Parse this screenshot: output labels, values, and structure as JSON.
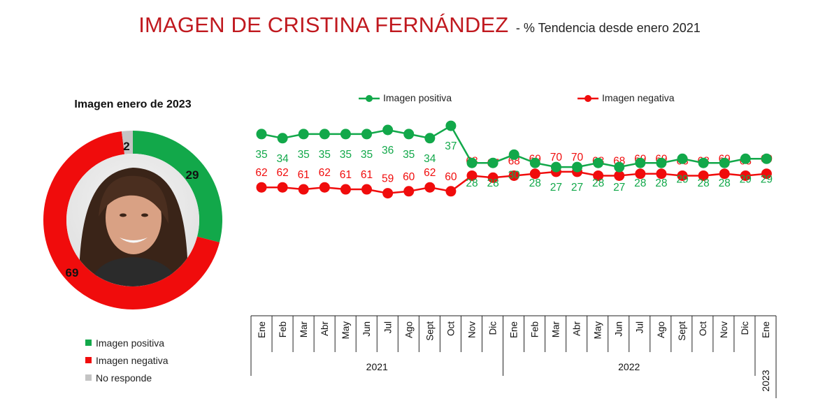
{
  "title": {
    "main": "IMAGEN DE CRISTINA FERNÁNDEZ",
    "sub": "- % Tendencia desde enero 2021"
  },
  "donut": {
    "title": "Imagen enero de 2023",
    "segments": [
      {
        "label": "Imagen positiva",
        "value": 29,
        "color": "#12a84a"
      },
      {
        "label": "Imagen negativa",
        "value": 69,
        "color": "#f00c0c"
      },
      {
        "label": "No responde",
        "value": 2,
        "color": "#c4c4c4"
      }
    ]
  },
  "chart_data": [
    {
      "type": "pie",
      "title": "Imagen enero de 2023",
      "categories": [
        "Imagen positiva",
        "Imagen negativa",
        "No responde"
      ],
      "values": [
        29,
        69,
        2
      ],
      "colors": [
        "#12a84a",
        "#f00c0c",
        "#c4c4c4"
      ],
      "legend": "bottom-left"
    },
    {
      "type": "line",
      "title": "IMAGEN DE CRISTINA FERNÁNDEZ - % Tendencia desde enero 2021",
      "x": [
        "Ene",
        "Feb",
        "Mar",
        "Abr",
        "May",
        "Jun",
        "Jul",
        "Ago",
        "Sept",
        "Oct",
        "Nov",
        "Dic",
        "Ene",
        "Feb",
        "Mar",
        "Abr",
        "May",
        "Jun",
        "Jul",
        "Ago",
        "Sept",
        "Oct",
        "Nov",
        "Dic",
        "Ene"
      ],
      "year_groups": [
        {
          "label": "2021",
          "count": 12
        },
        {
          "label": "2022",
          "count": 12
        },
        {
          "label": "2023",
          "count": 1
        }
      ],
      "series": [
        {
          "name": "Imagen positiva",
          "color": "#12a84a",
          "values": [
            35,
            34,
            35,
            35,
            35,
            35,
            36,
            35,
            34,
            37,
            28,
            28,
            30,
            28,
            27,
            27,
            28,
            27,
            28,
            28,
            29,
            28,
            28,
            29,
            29
          ]
        },
        {
          "name": "Imagen negativa",
          "color": "#f00c0c",
          "values": [
            62,
            62,
            61,
            62,
            61,
            61,
            59,
            60,
            62,
            60,
            68,
            67,
            68,
            69,
            70,
            70,
            68,
            68,
            69,
            69,
            68,
            68,
            69,
            68,
            69
          ]
        }
      ],
      "ylim": [
        20,
        75
      ],
      "grid": false,
      "legend": "top"
    }
  ]
}
